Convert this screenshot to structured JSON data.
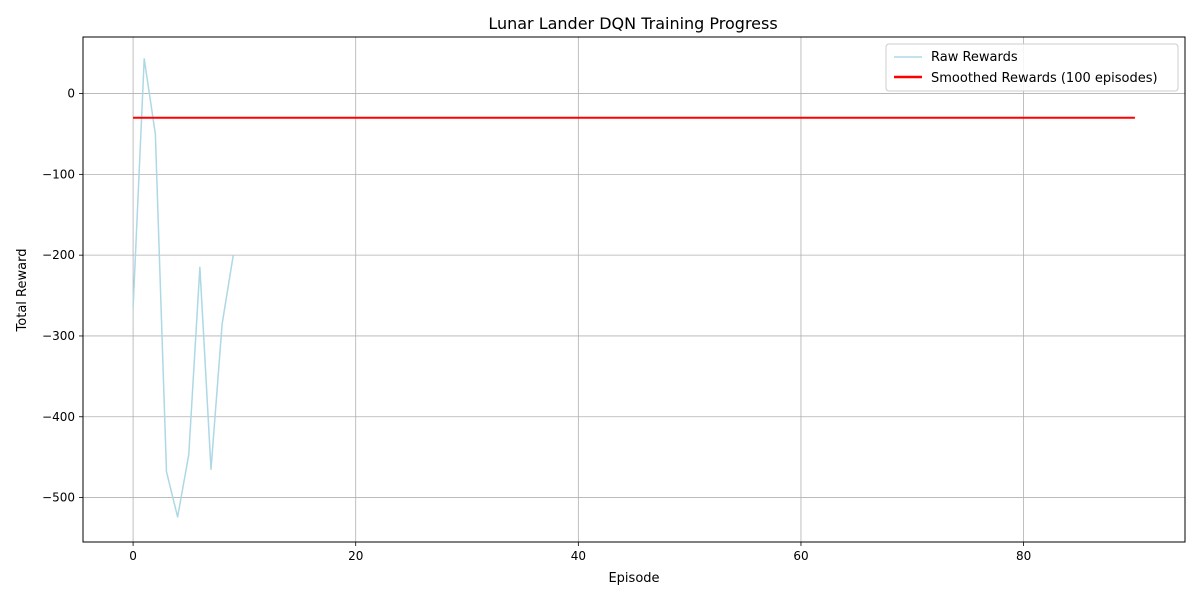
{
  "chart_data": {
    "type": "line",
    "title": "Lunar Lander DQN Training Progress",
    "xlabel": "Episode",
    "ylabel": "Total Reward",
    "xlim": [
      -4.5,
      94.5
    ],
    "ylim": [
      -555,
      70
    ],
    "xticks": [
      0,
      20,
      40,
      60,
      80
    ],
    "yticks": [
      0,
      -100,
      -200,
      -300,
      -400,
      -500
    ],
    "ytick_labels": [
      "0",
      "−100",
      "−200",
      "−300",
      "−400",
      "−500"
    ],
    "grid": true,
    "legend_position": "top-right",
    "series": [
      {
        "name": "Raw Rewards",
        "color": "#add8e6",
        "x": [
          0,
          1,
          2,
          3,
          4,
          5,
          6,
          7,
          8,
          9
        ],
        "y": [
          -265,
          43,
          -50,
          -468,
          -524,
          -447,
          -215,
          -465,
          -285,
          -200
        ]
      },
      {
        "name": "Smoothed Rewards (100 episodes)",
        "color": "#ff0000",
        "x": [
          0,
          90
        ],
        "y": [
          -30,
          -30
        ]
      }
    ]
  }
}
